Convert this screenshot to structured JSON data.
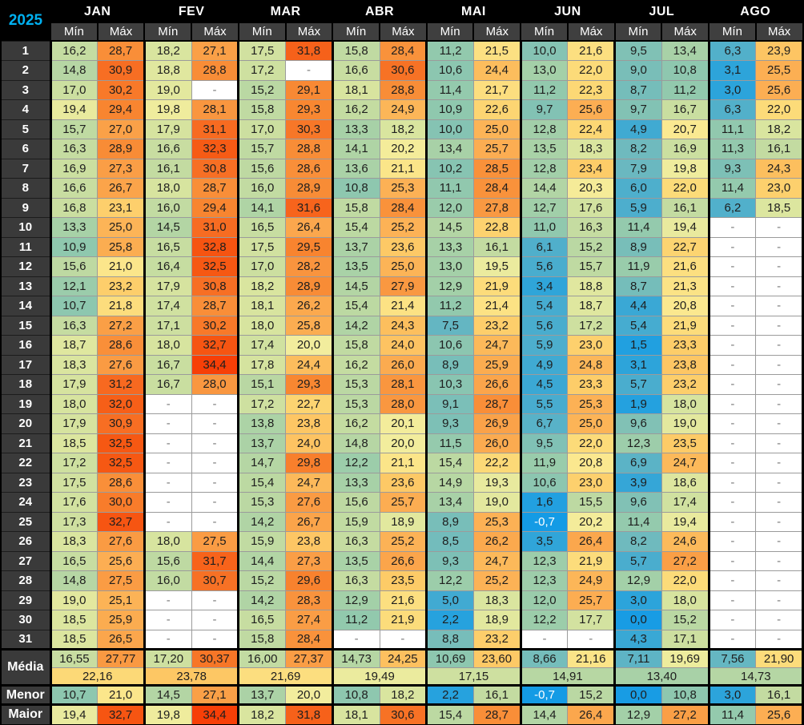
{
  "year_label": "2025",
  "accent_color": "#00b0f0",
  "empty_cell": "-",
  "months": [
    "JAN",
    "FEV",
    "MAR",
    "ABR",
    "MAI",
    "JUN",
    "JUL",
    "AGO"
  ],
  "col_headers": {
    "min": "Mín",
    "max": "Máx"
  },
  "days": [
    {
      "day": "1",
      "temps": [
        "16,2",
        "28,7",
        "18,2",
        "27,1",
        "17,5",
        "31,8",
        "15,8",
        "28,4",
        "11,2",
        "21,5",
        "10,0",
        "21,6",
        "9,5",
        "13,4",
        "6,3",
        "23,9"
      ]
    },
    {
      "day": "2",
      "temps": [
        "14,8",
        "30,9",
        "18,8",
        "28,8",
        "17,2",
        null,
        "16,6",
        "30,6",
        "10,6",
        "24,4",
        "13,0",
        "22,0",
        "9,0",
        "10,8",
        "3,1",
        "25,5"
      ]
    },
    {
      "day": "3",
      "temps": [
        "17,0",
        "30,2",
        "19,0",
        null,
        "15,2",
        "29,1",
        "18,1",
        "28,8",
        "11,4",
        "21,7",
        "11,2",
        "22,3",
        "8,7",
        "11,2",
        "3,0",
        "25,6"
      ]
    },
    {
      "day": "4",
      "temps": [
        "19,4",
        "29,4",
        "19,8",
        "28,1",
        "15,8",
        "29,3",
        "16,2",
        "24,9",
        "10,9",
        "22,6",
        "9,7",
        "25,6",
        "9,7",
        "16,7",
        "6,3",
        "22,0"
      ]
    },
    {
      "day": "5",
      "temps": [
        "15,7",
        "27,0",
        "17,9",
        "31,1",
        "17,0",
        "30,3",
        "13,3",
        "18,2",
        "10,0",
        "25,0",
        "12,8",
        "22,4",
        "4,9",
        "20,7",
        "11,1",
        "18,2"
      ]
    },
    {
      "day": "6",
      "temps": [
        "16,3",
        "28,9",
        "16,6",
        "32,3",
        "15,7",
        "28,8",
        "14,1",
        "20,2",
        "13,4",
        "25,7",
        "13,5",
        "18,3",
        "8,2",
        "16,9",
        "11,3",
        "16,1"
      ]
    },
    {
      "day": "7",
      "temps": [
        "16,9",
        "27,3",
        "16,1",
        "30,8",
        "15,6",
        "28,6",
        "13,6",
        "21,1",
        "10,2",
        "28,5",
        "12,8",
        "23,4",
        "7,9",
        "19,8",
        "9,3",
        "24,3"
      ]
    },
    {
      "day": "8",
      "temps": [
        "16,6",
        "26,7",
        "18,0",
        "28,7",
        "16,0",
        "28,9",
        "10,8",
        "25,3",
        "11,1",
        "28,4",
        "14,4",
        "20,3",
        "6,0",
        "22,0",
        "11,4",
        "23,0"
      ]
    },
    {
      "day": "9",
      "temps": [
        "16,8",
        "23,1",
        "16,0",
        "29,4",
        "14,1",
        "31,6",
        "15,8",
        "28,4",
        "12,0",
        "27,8",
        "12,7",
        "17,6",
        "5,9",
        "16,1",
        "6,2",
        "18,5"
      ]
    },
    {
      "day": "10",
      "temps": [
        "13,3",
        "25,0",
        "14,5",
        "31,0",
        "16,5",
        "26,4",
        "15,4",
        "25,2",
        "14,5",
        "22,8",
        "11,0",
        "16,3",
        "11,4",
        "19,4",
        null,
        null
      ]
    },
    {
      "day": "11",
      "temps": [
        "10,9",
        "25,8",
        "16,5",
        "32,8",
        "17,5",
        "29,5",
        "13,7",
        "23,6",
        "13,3",
        "16,1",
        "6,1",
        "15,2",
        "8,9",
        "22,7",
        null,
        null
      ]
    },
    {
      "day": "12",
      "temps": [
        "15,6",
        "21,0",
        "16,4",
        "32,5",
        "17,0",
        "28,2",
        "13,5",
        "25,0",
        "13,0",
        "19,5",
        "5,6",
        "15,7",
        "11,9",
        "21,6",
        null,
        null
      ]
    },
    {
      "day": "13",
      "temps": [
        "12,1",
        "23,2",
        "17,9",
        "30,8",
        "18,2",
        "28,9",
        "14,5",
        "27,9",
        "12,9",
        "21,9",
        "3,4",
        "18,8",
        "8,7",
        "21,3",
        null,
        null
      ]
    },
    {
      "day": "14",
      "temps": [
        "10,7",
        "21,8",
        "17,4",
        "28,7",
        "18,1",
        "26,2",
        "15,4",
        "21,4",
        "11,2",
        "21,4",
        "5,4",
        "18,7",
        "4,4",
        "20,8",
        null,
        null
      ]
    },
    {
      "day": "15",
      "temps": [
        "16,3",
        "27,2",
        "17,1",
        "30,2",
        "18,0",
        "25,8",
        "14,2",
        "24,3",
        "7,5",
        "23,2",
        "5,6",
        "17,2",
        "5,4",
        "21,9",
        null,
        null
      ]
    },
    {
      "day": "16",
      "temps": [
        "18,7",
        "28,6",
        "18,0",
        "32,7",
        "17,4",
        "20,0",
        "15,8",
        "24,0",
        "10,6",
        "24,7",
        "5,9",
        "23,0",
        "1,5",
        "23,3",
        null,
        null
      ]
    },
    {
      "day": "17",
      "temps": [
        "18,3",
        "27,6",
        "16,7",
        "34,4",
        "17,8",
        "24,4",
        "16,2",
        "26,0",
        "8,9",
        "25,9",
        "4,9",
        "24,8",
        "3,1",
        "23,8",
        null,
        null
      ]
    },
    {
      "day": "18",
      "temps": [
        "17,9",
        "31,2",
        "16,7",
        "28,0",
        "15,1",
        "29,3",
        "15,3",
        "28,1",
        "10,3",
        "26,6",
        "4,5",
        "23,3",
        "5,7",
        "23,2",
        null,
        null
      ]
    },
    {
      "day": "19",
      "temps": [
        "18,0",
        "32,0",
        null,
        null,
        "17,2",
        "22,7",
        "15,3",
        "28,0",
        "9,1",
        "28,7",
        "5,5",
        "25,3",
        "1,9",
        "18,0",
        null,
        null
      ]
    },
    {
      "day": "20",
      "temps": [
        "17,9",
        "30,9",
        null,
        null,
        "13,8",
        "23,8",
        "16,2",
        "20,1",
        "9,3",
        "26,9",
        "6,7",
        "25,0",
        "9,6",
        "19,0",
        null,
        null
      ]
    },
    {
      "day": "21",
      "temps": [
        "18,5",
        "32,5",
        null,
        null,
        "13,7",
        "24,0",
        "14,8",
        "20,0",
        "11,5",
        "26,0",
        "9,5",
        "22,0",
        "12,3",
        "23,5",
        null,
        null
      ]
    },
    {
      "day": "22",
      "temps": [
        "17,2",
        "32,5",
        null,
        null,
        "14,7",
        "29,8",
        "12,2",
        "21,1",
        "15,4",
        "22,2",
        "11,9",
        "20,8",
        "6,9",
        "24,7",
        null,
        null
      ]
    },
    {
      "day": "23",
      "temps": [
        "17,5",
        "28,6",
        null,
        null,
        "15,4",
        "24,7",
        "13,3",
        "23,6",
        "14,9",
        "19,3",
        "10,6",
        "23,0",
        "3,9",
        "18,6",
        null,
        null
      ]
    },
    {
      "day": "24",
      "temps": [
        "17,6",
        "30,0",
        null,
        null,
        "15,3",
        "27,6",
        "15,6",
        "25,7",
        "13,4",
        "19,0",
        "1,6",
        "15,5",
        "9,6",
        "17,4",
        null,
        null
      ]
    },
    {
      "day": "25",
      "temps": [
        "17,3",
        "32,7",
        null,
        null,
        "14,2",
        "26,7",
        "15,9",
        "18,9",
        "8,9",
        "25,3",
        "-0,7",
        "20,2",
        "11,4",
        "19,4",
        null,
        null
      ]
    },
    {
      "day": "26",
      "temps": [
        "18,3",
        "27,6",
        "18,0",
        "27,5",
        "15,9",
        "23,8",
        "16,3",
        "25,2",
        "8,5",
        "26,2",
        "3,5",
        "26,4",
        "8,2",
        "24,6",
        null,
        null
      ]
    },
    {
      "day": "27",
      "temps": [
        "16,5",
        "25,6",
        "15,6",
        "31,7",
        "14,4",
        "27,3",
        "13,5",
        "26,6",
        "9,3",
        "24,7",
        "12,3",
        "21,9",
        "5,7",
        "27,2",
        null,
        null
      ]
    },
    {
      "day": "28",
      "temps": [
        "14,8",
        "27,5",
        "16,0",
        "30,7",
        "15,2",
        "29,6",
        "16,3",
        "23,5",
        "12,2",
        "25,2",
        "12,3",
        "24,9",
        "12,9",
        "22,0",
        null,
        null
      ]
    },
    {
      "day": "29",
      "temps": [
        "19,0",
        "25,1",
        null,
        null,
        "14,2",
        "28,3",
        "12,9",
        "21,6",
        "5,0",
        "18,3",
        "12,0",
        "25,7",
        "3,0",
        "18,0",
        null,
        null
      ]
    },
    {
      "day": "30",
      "temps": [
        "18,5",
        "25,9",
        null,
        null,
        "16,5",
        "27,4",
        "11,2",
        "21,9",
        "2,2",
        "18,9",
        "12,2",
        "17,7",
        "0,0",
        "15,2",
        null,
        null
      ]
    },
    {
      "day": "31",
      "temps": [
        "18,5",
        "26,5",
        null,
        null,
        "15,8",
        "28,4",
        null,
        null,
        "8,8",
        "23,2",
        null,
        null,
        "4,3",
        "17,1",
        null,
        null
      ]
    }
  ],
  "summary": {
    "media_label": "Média",
    "menor_label": "Menor",
    "maior_label": "Maior",
    "media_min_max": [
      [
        "16,55",
        "27,77"
      ],
      [
        "17,20",
        "30,37"
      ],
      [
        "16,00",
        "27,37"
      ],
      [
        "14,73",
        "24,25"
      ],
      [
        "10,69",
        "23,60"
      ],
      [
        "8,66",
        "21,16"
      ],
      [
        "7,11",
        "19,69"
      ],
      [
        "7,56",
        "21,90"
      ]
    ],
    "media_overall": [
      "22,16",
      "23,78",
      "21,69",
      "19,49",
      "17,15",
      "14,91",
      "13,40",
      "14,73"
    ],
    "menor": [
      [
        "10,7",
        "21,0"
      ],
      [
        "14,5",
        "27,1"
      ],
      [
        "13,7",
        "20,0"
      ],
      [
        "10,8",
        "18,2"
      ],
      [
        "2,2",
        "16,1"
      ],
      [
        "-0,7",
        "15,2"
      ],
      [
        "0,0",
        "10,8"
      ],
      [
        "3,0",
        "16,1"
      ]
    ],
    "maior": [
      [
        "19,4",
        "32,7"
      ],
      [
        "19,8",
        "34,4"
      ],
      [
        "18,2",
        "31,8"
      ],
      [
        "18,1",
        "30,6"
      ],
      [
        "15,4",
        "28,7"
      ],
      [
        "14,4",
        "26,4"
      ],
      [
        "12,9",
        "27,2"
      ],
      [
        "11,4",
        "25,6"
      ]
    ]
  },
  "color_scale": [
    [
      -1,
      "#129ae6"
    ],
    [
      1.5,
      "#21a0e0"
    ],
    [
      3.5,
      "#30a5d9"
    ],
    [
      5,
      "#41aad2"
    ],
    [
      6.5,
      "#55b1c9"
    ],
    [
      8,
      "#6cb9bf"
    ],
    [
      9.5,
      "#80c1b5"
    ],
    [
      11,
      "#90c8ae"
    ],
    [
      13,
      "#a4d0a8"
    ],
    [
      15,
      "#b8d7a3"
    ],
    [
      17,
      "#ccdfa0"
    ],
    [
      18.5,
      "#dce69f"
    ],
    [
      20,
      "#f2ed9d"
    ],
    [
      20.8,
      "#fbe88f"
    ],
    [
      22,
      "#fcdb79"
    ],
    [
      23.5,
      "#fdcb67"
    ],
    [
      25,
      "#fcb457"
    ],
    [
      26.5,
      "#fba64c"
    ],
    [
      28,
      "#f99740"
    ],
    [
      29.5,
      "#f8842f"
    ],
    [
      31,
      "#f76c22"
    ],
    [
      32.5,
      "#f65813"
    ],
    [
      34.5,
      "#f73e06"
    ]
  ]
}
